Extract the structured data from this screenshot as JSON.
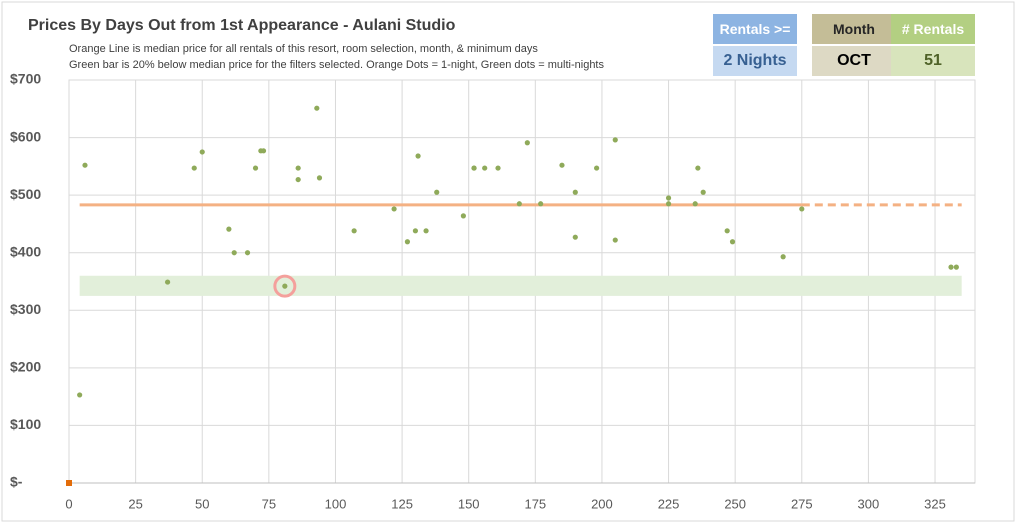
{
  "chart_data": {
    "type": "scatter",
    "title": "Prices By Days Out from 1st Appearance - Aulani Studio",
    "subtitle": [
      "Orange Line is median price for all rentals of this resort, room selection, month, & minimum days",
      "Green bar is 20% below median price for the filters selected. Orange Dots = 1-night, Green dots = multi-nights"
    ],
    "series": [
      {
        "color": "#e36c09",
        "x": [
          0
        ],
        "values": [
          0
        ]
      },
      {
        "color": "#8faa5a",
        "x": [
          4,
          6,
          37,
          47,
          50,
          60,
          62,
          67,
          70,
          72,
          73,
          81,
          86,
          86,
          93,
          94,
          107,
          122,
          127,
          130,
          131,
          134,
          138,
          148,
          152,
          152,
          156,
          161,
          169,
          172,
          177,
          185,
          190,
          190,
          198,
          205,
          205,
          225,
          225,
          235,
          236,
          238,
          247,
          249,
          268,
          275,
          331,
          333
        ],
        "values": [
          153,
          552,
          349,
          547,
          575,
          441,
          400,
          400,
          547,
          577,
          577,
          342,
          527,
          547,
          651,
          530,
          438,
          476,
          419,
          438,
          568,
          438,
          505,
          464,
          547,
          547,
          547,
          547,
          485,
          591,
          485,
          552,
          505,
          427,
          547,
          422,
          596,
          495,
          485,
          485,
          547,
          505,
          438,
          419,
          393,
          476,
          375,
          375
        ]
      }
    ],
    "highlight_point": 11,
    "median_line": {
      "value": 483,
      "color": "#f4b183",
      "x_start": 4,
      "x_solid_end": 275,
      "x_end": 335
    },
    "band": {
      "ylow": 325,
      "yhigh": 360,
      "color": "#e2efda",
      "x_start": 4,
      "x_end": 335
    },
    "xlim": [
      0,
      340
    ],
    "xticks": [
      0,
      25,
      50,
      75,
      100,
      125,
      150,
      175,
      200,
      225,
      250,
      275,
      300,
      325
    ],
    "ylim": [
      0,
      700
    ],
    "yticks": [
      {
        "value": 0,
        "label": "$-"
      },
      {
        "value": 100,
        "label": "$100"
      },
      {
        "value": 200,
        "label": "$200"
      },
      {
        "value": 300,
        "label": "$300"
      },
      {
        "value": 400,
        "label": "$400"
      },
      {
        "value": 500,
        "label": "$500"
      },
      {
        "value": 600,
        "label": "$600"
      },
      {
        "value": 700,
        "label": "$700"
      }
    ],
    "grid": true
  },
  "filters": [
    {
      "label": "Rentals >=",
      "value": "2 Nights"
    },
    {
      "label": "Month",
      "value": "OCT"
    },
    {
      "label": "# Rentals",
      "value": "51"
    }
  ]
}
